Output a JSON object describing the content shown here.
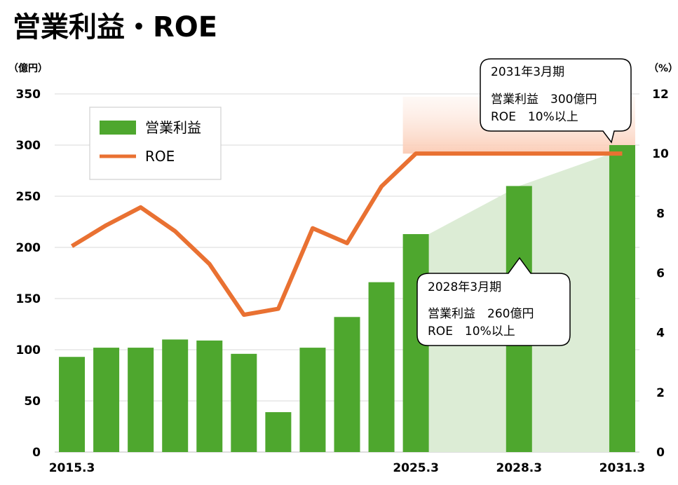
{
  "title": "営業利益・ROE",
  "left_unit": "（億円）",
  "right_unit": "（%）",
  "chart_data": {
    "type": "bar+line",
    "title": "営業利益・ROE",
    "x_tick_labels": [
      {
        "index": 0,
        "label": "2015.3"
      },
      {
        "index": 10,
        "label": "2025.3"
      },
      {
        "index": 13,
        "label": "2028.3"
      },
      {
        "index": 16,
        "label": "2031.3"
      }
    ],
    "y_left": {
      "min": 0,
      "max": 350,
      "ticks": [
        0,
        50,
        100,
        150,
        200,
        250,
        300,
        350
      ]
    },
    "y_right": {
      "min": 0,
      "max": 12,
      "ticks": [
        0,
        2,
        4,
        6,
        8,
        10,
        12
      ]
    },
    "grid": true,
    "legend": {
      "position": "top-left",
      "entries": [
        "営業利益",
        "ROE"
      ]
    },
    "series": [
      {
        "name": "営業利益",
        "type": "bar",
        "axis": "left",
        "color": "#4ea72e",
        "points": [
          {
            "index": 0,
            "value": 93
          },
          {
            "index": 1,
            "value": 102
          },
          {
            "index": 2,
            "value": 102
          },
          {
            "index": 3,
            "value": 110
          },
          {
            "index": 4,
            "value": 109
          },
          {
            "index": 5,
            "value": 96
          },
          {
            "index": 6,
            "value": 39
          },
          {
            "index": 7,
            "value": 102
          },
          {
            "index": 8,
            "value": 132
          },
          {
            "index": 9,
            "value": 166
          },
          {
            "index": 10,
            "value": 213
          },
          {
            "index": 13,
            "value": 260
          },
          {
            "index": 16,
            "value": 300
          }
        ]
      },
      {
        "name": "ROE",
        "type": "line",
        "axis": "right",
        "color": "#e97132",
        "points": [
          {
            "index": 0,
            "value": 6.9
          },
          {
            "index": 1,
            "value": 7.6
          },
          {
            "index": 2,
            "value": 8.2
          },
          {
            "index": 3,
            "value": 7.4
          },
          {
            "index": 4,
            "value": 6.3
          },
          {
            "index": 5,
            "value": 4.6
          },
          {
            "index": 6,
            "value": 4.8
          },
          {
            "index": 7,
            "value": 7.5
          },
          {
            "index": 8,
            "value": 7.0
          },
          {
            "index": 9,
            "value": 8.9
          },
          {
            "index": 10,
            "value": 10.0
          },
          {
            "index": 16,
            "value": 10.0
          }
        ]
      }
    ],
    "annotations": [
      {
        "period": "2028年3月期",
        "profit_line": "営業利益　260億円",
        "roe_line": "ROE　10%以上"
      },
      {
        "period": "2031年3月期",
        "profit_line": "営業利益　300億円",
        "roe_line": "ROE　10%以上"
      }
    ],
    "colors": {
      "bar": "#4ea72e",
      "line": "#e97132",
      "forecast_area": "#dcecd5",
      "roe_band_top": "#fbd5c4",
      "grid": "#d9d9d9"
    }
  }
}
